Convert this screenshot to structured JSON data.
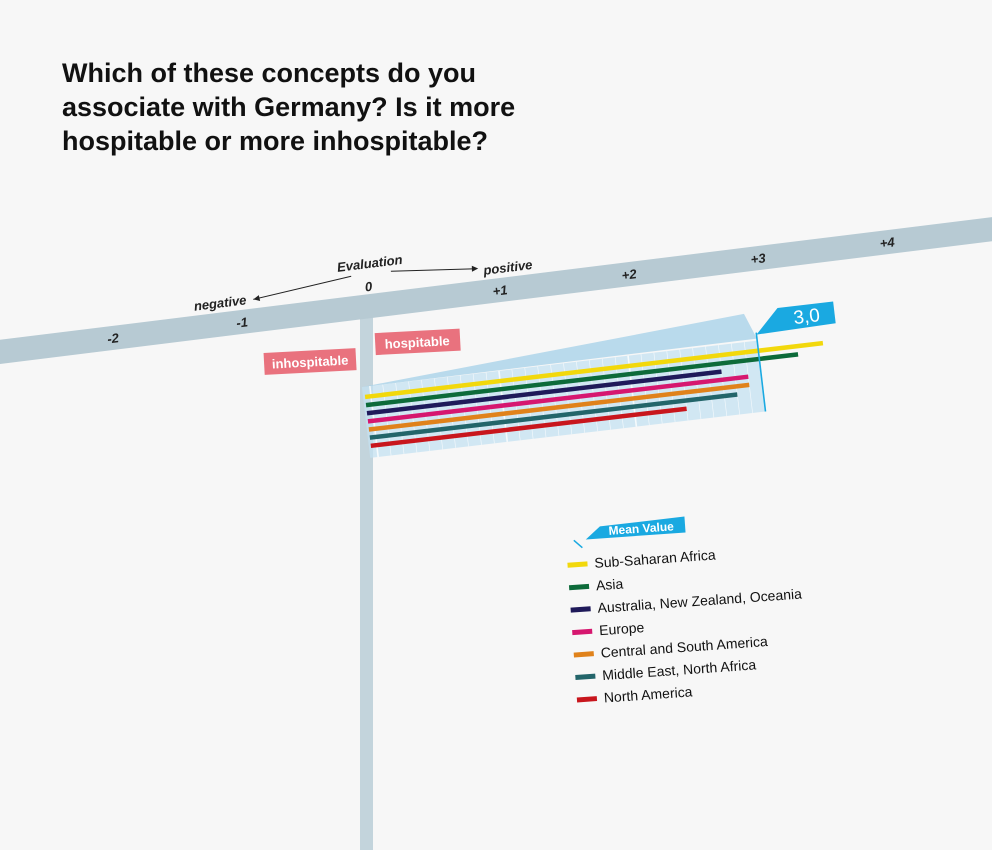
{
  "title": "Which of these concepts do you associate with Germany? Is it more hospitable or more inhospitable?",
  "chart_data": {
    "type": "bar",
    "orientation": "horizontal",
    "title": "Which of these concepts do you associate with Germany? Is it more hospitable or more inhospitable?",
    "xlabel": "Evaluation",
    "axis_direction_labels": {
      "negative": "negative",
      "positive": "positive"
    },
    "xlim": [
      -2.8,
      4.8
    ],
    "ticks": [
      -2,
      -1,
      0,
      1,
      2,
      3,
      4
    ],
    "tick_labels": [
      "-2",
      "-1",
      "0",
      "+1",
      "+2",
      "+3",
      "+4"
    ],
    "pole_labels": {
      "left": "inhospitable",
      "right": "hospitable"
    },
    "mean": {
      "label": "Mean Value",
      "value": 3.0,
      "value_label": "3,0"
    },
    "categories": [
      "Sub-Saharan Africa",
      "Asia",
      "Australia, New Zealand, Oceania",
      "Europe",
      "Central and South America",
      "Middle East, North Africa",
      "North America"
    ],
    "values": [
      3.5,
      3.3,
      2.7,
      2.9,
      2.9,
      2.8,
      2.4
    ],
    "colors": [
      "#f2d80c",
      "#0d6b3a",
      "#1f1a5a",
      "#d6176f",
      "#e0821b",
      "#23656a",
      "#c8161d"
    ]
  },
  "colors": {
    "axis": "#b7cad3",
    "label_bg": "#e9727e",
    "accent": "#1aa9e1",
    "grid": "#bfe0f0"
  }
}
